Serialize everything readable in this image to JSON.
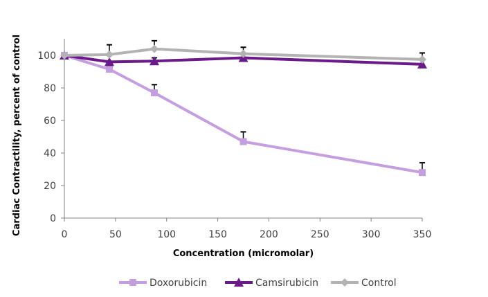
{
  "chart_data": {
    "type": "line",
    "title": "",
    "xlabel": "Concentration (micromolar)",
    "ylabel": "Cardiac Contractility, percent of control",
    "xlim": [
      0,
      350
    ],
    "ylim": [
      0,
      110
    ],
    "xticks": [
      0,
      50,
      100,
      150,
      200,
      250,
      300,
      350
    ],
    "yticks": [
      0,
      20,
      40,
      60,
      80,
      100
    ],
    "grid": false,
    "legend_position": "bottom",
    "series": [
      {
        "name": "Doxorubicin",
        "color": "#c59ee0",
        "marker": "square",
        "x": [
          0,
          44,
          88,
          175,
          350
        ],
        "y": [
          100,
          91.5,
          77,
          47,
          28
        ],
        "error_upper": [
          0,
          0,
          5,
          6,
          6
        ]
      },
      {
        "name": "Camsirubicin",
        "color": "#6a1b8a",
        "marker": "triangle",
        "x": [
          0,
          44,
          88,
          175,
          350
        ],
        "y": [
          100,
          96,
          96.5,
          98.5,
          94.5
        ],
        "error_upper": [
          0,
          0,
          2,
          2,
          0
        ]
      },
      {
        "name": "Control",
        "color": "#b3b3b3",
        "marker": "diamond",
        "x": [
          0,
          44,
          88,
          175,
          350
        ],
        "y": [
          100,
          100.5,
          104,
          101,
          97.5
        ],
        "error_upper": [
          0,
          6,
          5,
          4,
          4
        ]
      }
    ]
  }
}
